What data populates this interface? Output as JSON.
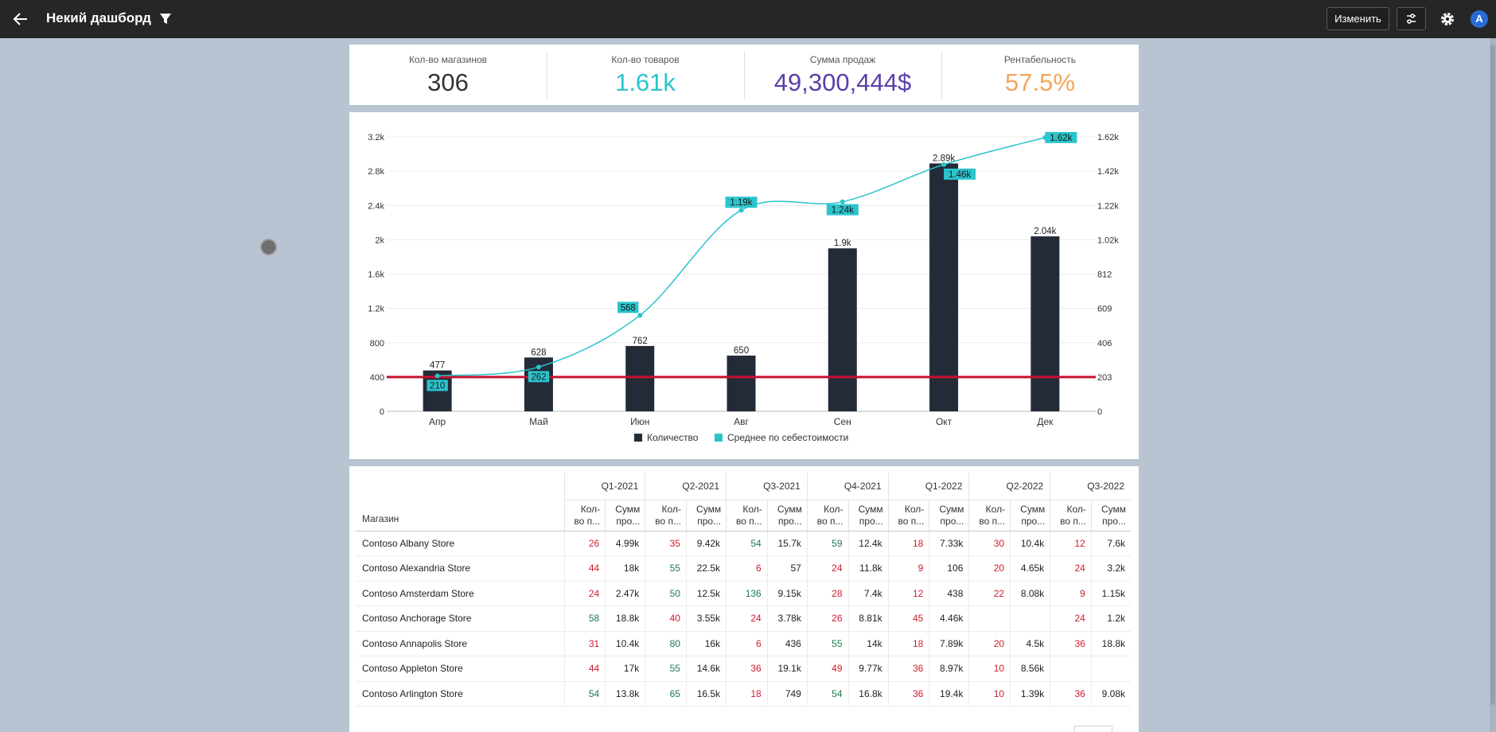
{
  "header": {
    "title": "Некий дашборд",
    "edit_label": "Изменить",
    "avatar_letter": "A",
    "icons": [
      "back-arrow-icon",
      "filter-icon",
      "sliders-icon",
      "gear-icon"
    ]
  },
  "kpis": [
    {
      "label": "Кол-во магазинов",
      "value": "306",
      "color": "#333333"
    },
    {
      "label": "Кол-во товаров",
      "value": "1.61k",
      "color": "#2bc4cc"
    },
    {
      "label": "Сумма продаж",
      "value": "49,300,444$",
      "color": "#5b3fa8"
    },
    {
      "label": "Рентабельность",
      "value": "57.5%",
      "color": "#f2a65a"
    }
  ],
  "chart_data": {
    "type": "bar",
    "categories": [
      "Апр",
      "Май",
      "Июн",
      "Авг",
      "Сен",
      "Окт",
      "Дек"
    ],
    "series": [
      {
        "name": "Количество",
        "type": "bar",
        "axis": "left",
        "color": "#232b38",
        "values": [
          477,
          628,
          762,
          650,
          1900,
          2890,
          2040
        ],
        "labels": [
          "477",
          "628",
          "762",
          "650",
          "1.9k",
          "2.89k",
          "2.04k"
        ]
      },
      {
        "name": "Среднее по себестоимости",
        "type": "line",
        "axis": "right",
        "color": "#2bc4cc",
        "values": [
          210,
          262,
          568,
          1190,
          1240,
          1460,
          1620
        ],
        "labels": [
          "210",
          "262",
          "568",
          "1.19k",
          "1.24k",
          "1.46k",
          "1.62k"
        ]
      }
    ],
    "reference_line": {
      "value": 400,
      "color": "#c8102e"
    },
    "y_left": {
      "min": 0,
      "max": 3200,
      "ticks": [
        "0",
        "400",
        "800",
        "1.2k",
        "1.6k",
        "2k",
        "2.4k",
        "2.8k",
        "3.2k"
      ]
    },
    "y_right": {
      "min": 0,
      "max": 1624,
      "ticks": [
        "0",
        "203",
        "406",
        "609",
        "812",
        "1.02k",
        "1.22k",
        "1.42k",
        "1.62k"
      ]
    },
    "legend": [
      "Количество",
      "Среднее по себестоимости"
    ],
    "legend_position": "bottom"
  },
  "table": {
    "store_header": "Магазин",
    "quarters": [
      "Q1-2021",
      "Q2-2021",
      "Q3-2021",
      "Q4-2021",
      "Q1-2022",
      "Q2-2022",
      "Q3-2022"
    ],
    "measure_headers": [
      [
        "Кол-",
        "во п..."
      ],
      [
        "Сумм",
        "про..."
      ]
    ],
    "rows": [
      {
        "store": "Contoso Albany Store",
        "cells": [
          [
            "26",
            "r"
          ],
          [
            "4.99k",
            ""
          ],
          [
            "35",
            "r"
          ],
          [
            "9.42k",
            ""
          ],
          [
            "54",
            "g"
          ],
          [
            "15.7k",
            ""
          ],
          [
            "59",
            "g"
          ],
          [
            "12.4k",
            ""
          ],
          [
            "18",
            "r"
          ],
          [
            "7.33k",
            ""
          ],
          [
            "30",
            "r"
          ],
          [
            "10.4k",
            ""
          ],
          [
            "12",
            "r"
          ],
          [
            "7.6k",
            ""
          ]
        ]
      },
      {
        "store": "Contoso Alexandria Store",
        "cells": [
          [
            "44",
            "r"
          ],
          [
            "18k",
            ""
          ],
          [
            "55",
            "g"
          ],
          [
            "22.5k",
            ""
          ],
          [
            "6",
            "r"
          ],
          [
            "57",
            ""
          ],
          [
            "24",
            "r"
          ],
          [
            "11.8k",
            ""
          ],
          [
            "9",
            "r"
          ],
          [
            "106",
            ""
          ],
          [
            "20",
            "r"
          ],
          [
            "4.65k",
            ""
          ],
          [
            "24",
            "r"
          ],
          [
            "3.2k",
            ""
          ]
        ]
      },
      {
        "store": "Contoso Amsterdam Store",
        "cells": [
          [
            "24",
            "r"
          ],
          [
            "2.47k",
            ""
          ],
          [
            "50",
            "g"
          ],
          [
            "12.5k",
            ""
          ],
          [
            "136",
            "g"
          ],
          [
            "9.15k",
            ""
          ],
          [
            "28",
            "r"
          ],
          [
            "7.4k",
            ""
          ],
          [
            "12",
            "r"
          ],
          [
            "438",
            ""
          ],
          [
            "22",
            "r"
          ],
          [
            "8.08k",
            ""
          ],
          [
            "9",
            "r"
          ],
          [
            "1.15k",
            ""
          ]
        ]
      },
      {
        "store": "Contoso Anchorage Store",
        "cells": [
          [
            "58",
            "g"
          ],
          [
            "18.8k",
            ""
          ],
          [
            "40",
            "r"
          ],
          [
            "3.55k",
            ""
          ],
          [
            "24",
            "r"
          ],
          [
            "3.78k",
            ""
          ],
          [
            "26",
            "r"
          ],
          [
            "8.81k",
            ""
          ],
          [
            "45",
            "r"
          ],
          [
            "4.46k",
            ""
          ],
          [
            "",
            ""
          ],
          [
            "",
            ""
          ],
          [
            "24",
            "r"
          ],
          [
            "1.2k",
            ""
          ]
        ]
      },
      {
        "store": "Contoso Annapolis Store",
        "cells": [
          [
            "31",
            "r"
          ],
          [
            "10.4k",
            ""
          ],
          [
            "80",
            "g"
          ],
          [
            "16k",
            ""
          ],
          [
            "6",
            "r"
          ],
          [
            "436",
            ""
          ],
          [
            "55",
            "g"
          ],
          [
            "14k",
            ""
          ],
          [
            "18",
            "r"
          ],
          [
            "7.89k",
            ""
          ],
          [
            "20",
            "r"
          ],
          [
            "4.5k",
            ""
          ],
          [
            "36",
            "r"
          ],
          [
            "18.8k",
            ""
          ]
        ]
      },
      {
        "store": "Contoso Appleton Store",
        "cells": [
          [
            "44",
            "r"
          ],
          [
            "17k",
            ""
          ],
          [
            "55",
            "g"
          ],
          [
            "14.6k",
            ""
          ],
          [
            "36",
            "r"
          ],
          [
            "19.1k",
            ""
          ],
          [
            "49",
            "r"
          ],
          [
            "9.77k",
            ""
          ],
          [
            "36",
            "r"
          ],
          [
            "8.97k",
            ""
          ],
          [
            "10",
            "r"
          ],
          [
            "8.56k",
            ""
          ],
          [
            "",
            ""
          ],
          [
            "",
            ""
          ]
        ]
      },
      {
        "store": "Contoso Arlington Store",
        "cells": [
          [
            "54",
            "g"
          ],
          [
            "13.8k",
            ""
          ],
          [
            "65",
            "g"
          ],
          [
            "16.5k",
            ""
          ],
          [
            "18",
            "r"
          ],
          [
            "749",
            ""
          ],
          [
            "54",
            "g"
          ],
          [
            "16.8k",
            ""
          ],
          [
            "36",
            "r"
          ],
          [
            "19.4k",
            ""
          ],
          [
            "10",
            "r"
          ],
          [
            "1.39k",
            ""
          ],
          [
            "36",
            "r"
          ],
          [
            "9.08k",
            ""
          ]
        ]
      }
    ]
  }
}
